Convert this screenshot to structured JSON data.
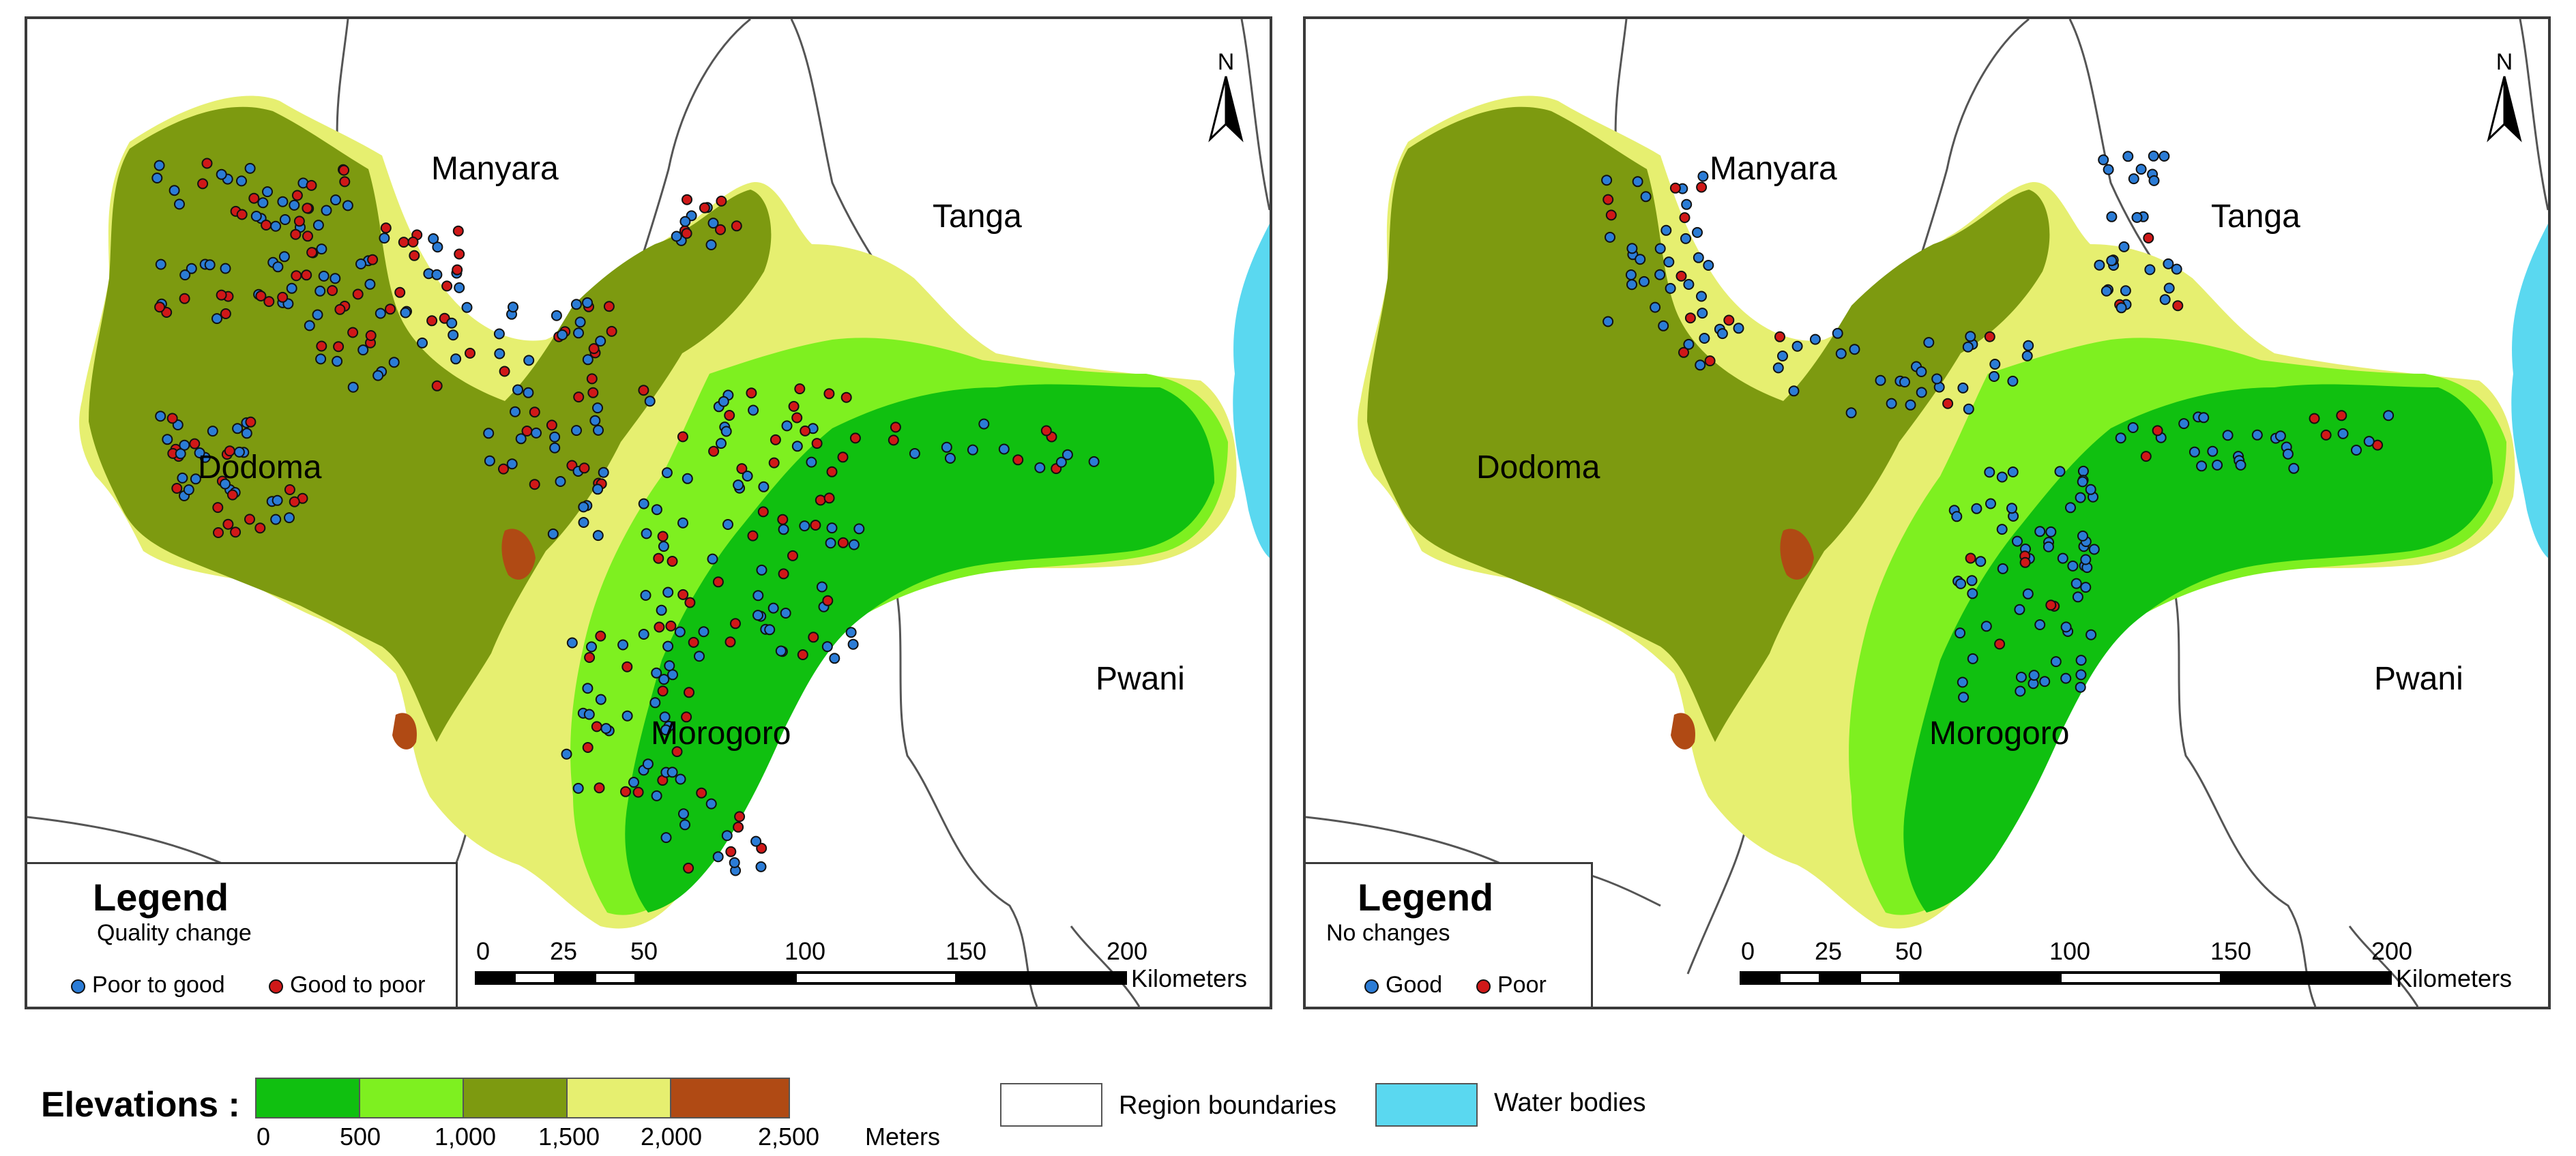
{
  "colors": {
    "elev_0_500": "#10c010",
    "elev_500_1000": "#7ef020",
    "elev_1000_1500": "#7d9a10",
    "elev_1500_2000": "#e6ef70",
    "elev_2000_2500": "#b04a14",
    "water": "#5ad8f0",
    "region_fill": "#ffffff",
    "point_blue": "#2b7cd6",
    "point_red": "#d01818"
  },
  "regions": {
    "manyara": "Manyara",
    "tanga": "Tanga",
    "dodoma": "Dodoma",
    "pwani": "Pwani",
    "morogoro": "Morogoro"
  },
  "north_label": "N",
  "panels": [
    {
      "legend_title": "Legend",
      "legend_subtitle": "Quality change",
      "legend_items": [
        {
          "label": "Poor to good",
          "color": "#2b7cd6"
        },
        {
          "label": "Good to poor",
          "color": "#d01818"
        }
      ]
    },
    {
      "legend_title": "Legend",
      "legend_subtitle": "No changes",
      "legend_items": [
        {
          "label": "Good",
          "color": "#2b7cd6"
        },
        {
          "label": "Poor",
          "color": "#d01818"
        }
      ]
    }
  ],
  "scale": {
    "ticks": [
      "0",
      "25",
      "50",
      "100",
      "150",
      "200"
    ],
    "units": "Kilometers"
  },
  "elevation_legend": {
    "title": "Elevations :",
    "ticks": [
      "0",
      "500",
      "1,000",
      "1,500",
      "2,000",
      "2,500"
    ],
    "units": "Meters"
  },
  "map_key": {
    "region_boundaries": "Region boundaries",
    "water_bodies": "Water bodies"
  }
}
